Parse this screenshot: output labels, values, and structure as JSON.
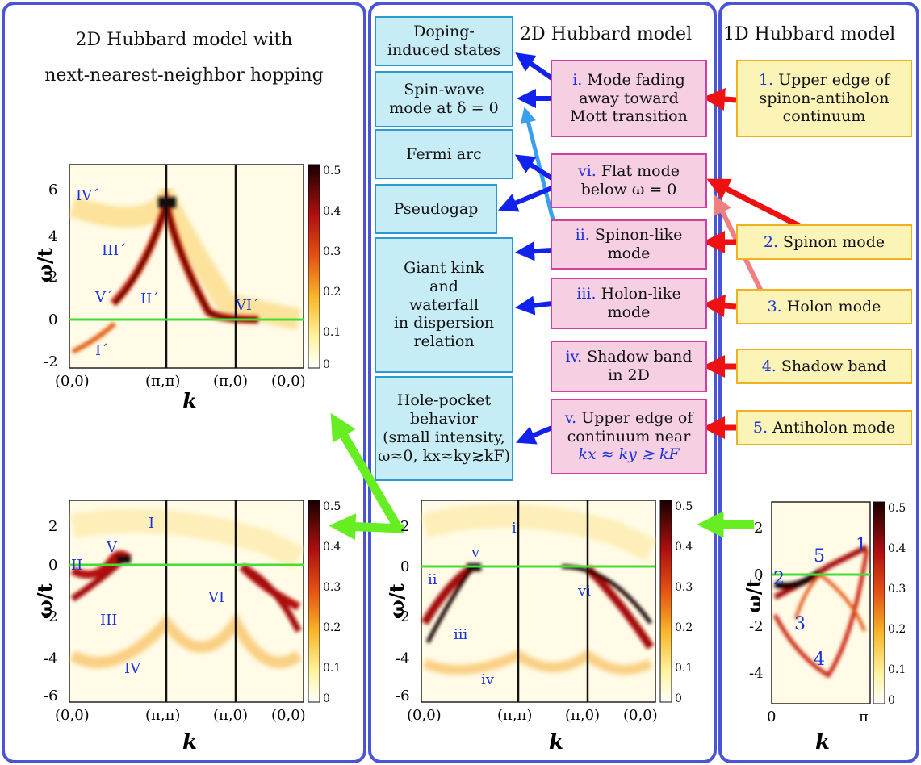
{
  "panels": {
    "left_title": "2D Hubbard model with\nnext-nearest-neighbor hopping",
    "middle_title": "2D Hubbard model",
    "right_title": "1D Hubbard model"
  },
  "cyan_boxes": [
    "Doping-\ninduced states",
    "Spin-wave\nmode at δ = 0",
    "Fermi arc",
    "Pseudogap",
    "Giant kink\nand\nwaterfall\nin dispersion\nrelation",
    "Hole-pocket\nbehavior\n(small intensity,\nω≈0, kx≈ky≳kF)"
  ],
  "pink_boxes": [
    {
      "num": "i.",
      "text": " Mode fading\naway toward\nMott transition"
    },
    {
      "num": "vi.",
      "text": " Flat mode\nbelow ω = 0"
    },
    {
      "num": "ii.",
      "text": " Spinon-like\nmode"
    },
    {
      "num": "iii.",
      "text": " Holon-like\nmode"
    },
    {
      "num": "iv.",
      "text": " Shadow band\nin 2D"
    },
    {
      "num": "v.",
      "text": " Upper edge of\ncontinuum near",
      "sub": "kx ≈ ky ≳ kF"
    }
  ],
  "yellow_boxes": [
    {
      "num": "1.",
      "text": " Upper edge of\nspinon-antiholon\ncontinuum"
    },
    {
      "num": "2.",
      "text": " Spinon mode"
    },
    {
      "num": "3.",
      "text": " Holon mode"
    },
    {
      "num": "4.",
      "text": " Shadow band"
    },
    {
      "num": "5.",
      "text": " Antiholon mode"
    }
  ],
  "axes": {
    "ylabel": "ω/t",
    "xlabel": "k",
    "xticks_2d": [
      "(0,0)",
      "(π,π)",
      "(π,0)",
      "(0,0)"
    ],
    "xticks_1d": [
      "0",
      "π"
    ],
    "colorbar_ticks": [
      "0.5",
      "0.4",
      "0.3",
      "0.2",
      "0.1",
      "0"
    ]
  },
  "plot_top_left": {
    "yticks": [
      "6",
      "4",
      "2",
      "0",
      "-2"
    ],
    "labels": [
      "IV´",
      "III´",
      "V´",
      "II´",
      "VI´",
      "I´"
    ]
  },
  "plot_bottom_left": {
    "yticks": [
      "2",
      "0",
      "-2",
      "-4",
      "-6"
    ],
    "labels": [
      "I",
      "V",
      "II",
      "III",
      "VI",
      "IV"
    ]
  },
  "plot_bottom_mid": {
    "yticks": [
      "2",
      "0",
      "-2",
      "-4",
      "-6"
    ],
    "labels": [
      "i",
      "v",
      "ii",
      "vi",
      "iii",
      "iv"
    ]
  },
  "plot_bottom_right": {
    "yticks": [
      "2",
      "0",
      "-2",
      "-4"
    ],
    "labels": [
      "1",
      "5",
      "2",
      "3",
      "4"
    ]
  },
  "colors": {
    "panel_border": "#4a55d6",
    "cyan_fill": "#c6ecf6",
    "pink_fill": "#f6cfe2",
    "yellow_fill": "#fcf3b6",
    "label_blue": "#1a34d8",
    "fermi_line": "#44dd33",
    "arrow_red": "#ee1111",
    "arrow_blue": "#1122ee",
    "arrow_green": "#66ee22"
  }
}
